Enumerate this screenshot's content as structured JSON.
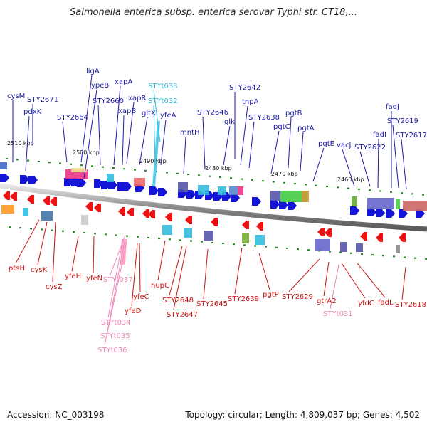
{
  "title": "Salmonella enterica subsp. enterica serovar Typhi str. CT18,...",
  "footer": {
    "accession": "Accession: NC_003198",
    "topology": "Topology: circular; Length: 4,809,037 bp; Genes: 4,502"
  },
  "colors": {
    "top_label": "#1a1aa8",
    "top_trna": "#33bbdd",
    "bottom_label": "#cc1111",
    "bottom_trna": "#ee88bb",
    "forward_gene": "#1515d8",
    "reverse_gene": "#ee1111",
    "backbone": "#888888",
    "ticks": "#228822"
  },
  "kbp_markers": [
    {
      "label": "2510 kbp"
    },
    {
      "label": "2500 kbp"
    },
    {
      "label": "2490 kbp"
    },
    {
      "label": "2480 kbp"
    },
    {
      "label": "2470 kbp"
    },
    {
      "label": "2460 kbp"
    }
  ],
  "top_genes": [
    {
      "name": "cysM",
      "kind": "gene"
    },
    {
      "name": "STY2671",
      "kind": "gene"
    },
    {
      "name": "pdxK",
      "kind": "gene"
    },
    {
      "name": "STY2664",
      "kind": "gene"
    },
    {
      "name": "ligA",
      "kind": "gene"
    },
    {
      "name": "ypeB",
      "kind": "gene"
    },
    {
      "name": "STY2660",
      "kind": "gene"
    },
    {
      "name": "xapA",
      "kind": "gene"
    },
    {
      "name": "xapB",
      "kind": "gene"
    },
    {
      "name": "xapR",
      "kind": "gene"
    },
    {
      "name": "gltX",
      "kind": "gene"
    },
    {
      "name": "STYt033",
      "kind": "trna"
    },
    {
      "name": "STYt032",
      "kind": "trna"
    },
    {
      "name": "yfeA",
      "kind": "gene"
    },
    {
      "name": "mntH",
      "kind": "gene"
    },
    {
      "name": "STY2646",
      "kind": "gene"
    },
    {
      "name": "glk",
      "kind": "gene"
    },
    {
      "name": "STY2642",
      "kind": "gene"
    },
    {
      "name": "tnpA",
      "kind": "gene"
    },
    {
      "name": "STY2638",
      "kind": "gene"
    },
    {
      "name": "pgtC",
      "kind": "gene"
    },
    {
      "name": "pgtB",
      "kind": "gene"
    },
    {
      "name": "pgtA",
      "kind": "gene"
    },
    {
      "name": "pgtE",
      "kind": "gene"
    },
    {
      "name": "vacJ",
      "kind": "gene"
    },
    {
      "name": "STY2622",
      "kind": "gene"
    },
    {
      "name": "fadI",
      "kind": "gene"
    },
    {
      "name": "fadJ",
      "kind": "gene"
    },
    {
      "name": "STY2619",
      "kind": "gene"
    },
    {
      "name": "STY2617",
      "kind": "gene"
    }
  ],
  "bottom_genes": [
    {
      "name": "ptsH",
      "kind": "gene"
    },
    {
      "name": "cysK",
      "kind": "gene"
    },
    {
      "name": "cysZ",
      "kind": "gene"
    },
    {
      "name": "yfeH",
      "kind": "gene"
    },
    {
      "name": "yfeN",
      "kind": "gene"
    },
    {
      "name": "STYt037",
      "kind": "trna"
    },
    {
      "name": "STYt034",
      "kind": "trna"
    },
    {
      "name": "STYt035",
      "kind": "trna"
    },
    {
      "name": "STYt036",
      "kind": "trna"
    },
    {
      "name": "yfeC",
      "kind": "gene"
    },
    {
      "name": "yfeD",
      "kind": "gene"
    },
    {
      "name": "nupC",
      "kind": "gene"
    },
    {
      "name": "STY2648",
      "kind": "gene"
    },
    {
      "name": "STY2647",
      "kind": "gene"
    },
    {
      "name": "STY2645",
      "kind": "gene"
    },
    {
      "name": "STY2639",
      "kind": "gene"
    },
    {
      "name": "pgtP",
      "kind": "gene"
    },
    {
      "name": "STY2629",
      "kind": "gene"
    },
    {
      "name": "gtrA2",
      "kind": "gene"
    },
    {
      "name": "STYt031",
      "kind": "trna"
    },
    {
      "name": "yfdC",
      "kind": "gene"
    },
    {
      "name": "fadL",
      "kind": "gene"
    },
    {
      "name": "STY2618",
      "kind": "gene"
    }
  ]
}
